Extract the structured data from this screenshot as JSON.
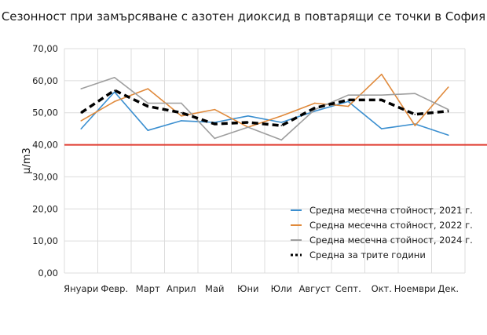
{
  "chart_data": {
    "type": "line",
    "title": "Сезонност при замърсяване с азотен диоксид в повтарящи се точки в София",
    "xlabel": "",
    "ylabel": "μ/m3",
    "categories": [
      "Януари",
      "Февр.",
      "Март",
      "Април",
      "Май",
      "Юни",
      "Юли",
      "Август",
      "Септ.",
      "Окт.",
      "Ноември",
      "Дек."
    ],
    "ylim": [
      0,
      70
    ],
    "yticks": [
      "0,00",
      "10,00",
      "20,00",
      "30,00",
      "40,00",
      "50,00",
      "60,00",
      "70,00"
    ],
    "ytick_values": [
      0,
      10,
      20,
      30,
      40,
      50,
      60,
      70
    ],
    "grid": true,
    "legend_position": "bottom-right",
    "reference_line": {
      "value": 40,
      "color": "#e03a2f"
    },
    "series": [
      {
        "name": "Средна месечна стойност, 2021 г.",
        "color": "#3b8fd0",
        "style": "solid",
        "values": [
          45.0,
          56.5,
          44.5,
          47.5,
          47.0,
          49.0,
          47.0,
          50.5,
          53.5,
          45.0,
          46.5,
          43.0
        ]
      },
      {
        "name": "Средна месечна стойност, 2022 г.",
        "color": "#e08a3c",
        "style": "solid",
        "values": [
          47.5,
          53.5,
          57.5,
          49.0,
          51.0,
          45.5,
          49.0,
          53.0,
          52.0,
          62.0,
          46.0,
          58.0
        ]
      },
      {
        "name": "Средна месечна стойност, 2024 г.",
        "color": "#9e9e9e",
        "style": "solid",
        "values": [
          57.5,
          61.0,
          53.0,
          53.0,
          42.0,
          45.5,
          41.5,
          51.0,
          55.5,
          55.5,
          56.0,
          51.0
        ]
      },
      {
        "name": "Средна за трите години",
        "color": "#000000",
        "style": "dashed",
        "values": [
          50.0,
          57.0,
          52.0,
          50.0,
          46.5,
          47.0,
          46.0,
          51.5,
          54.0,
          54.0,
          49.5,
          50.5
        ]
      }
    ]
  }
}
